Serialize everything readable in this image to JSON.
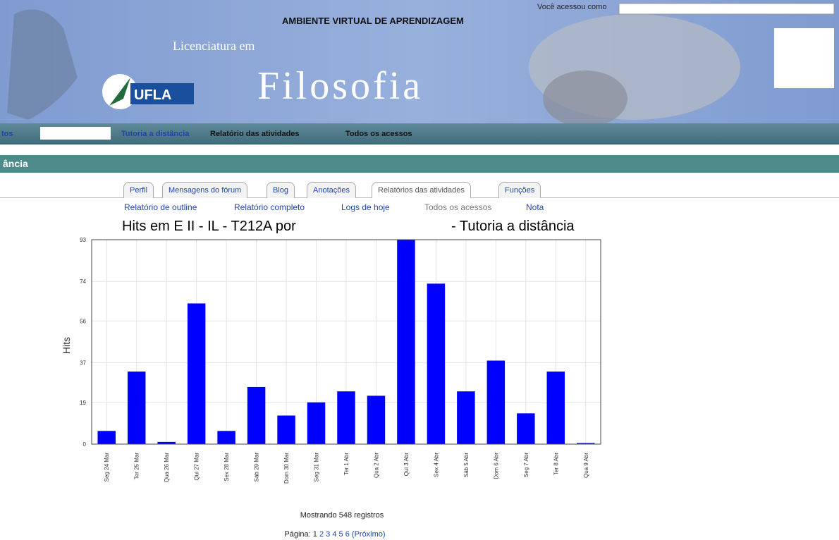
{
  "header": {
    "platform": "AMBIENTE VIRTUAL DE APRENDIZAGEM",
    "subtitle": "Licenciatura em",
    "title": "Filosofia",
    "logo": "UFLA",
    "login": "Você acessou como"
  },
  "breadcrumb": {
    "first": "tos",
    "items": [
      "Tutoria a distância",
      "Relatório das atividades",
      "Todos os acessos"
    ]
  },
  "course_bar": "ância",
  "tabs": [
    "Perfil",
    "Mensagens do fórum",
    "Blog",
    "Anotações",
    "Relatórios das atividades",
    "Funções"
  ],
  "subtabs": [
    "Relatório de outline",
    "Relatório completo",
    "Logs de hoje",
    "Todos os acessos",
    "Nota"
  ],
  "chart_data": {
    "type": "bar",
    "title_parts": [
      "Hits em E II - IL - T212A por",
      "- Tutoria a distância"
    ],
    "y_label": "Hits",
    "categories": [
      "Seg 24 Mar",
      "Ter 25 Mar",
      "Qua 26 Mar",
      "Qui 27 Mar",
      "Sex 28 Mar",
      "Sáb 29 Mar",
      "Dom 30 Mar",
      "Seg 31 Mar",
      "Ter 1 Abr",
      "Qua 2 Abr",
      "Qui 3 Abr",
      "Sex 4 Abr",
      "Sáb 5 Abr",
      "Dom 6 Abr",
      "Seg 7 Abr",
      "Ter 8 Abr",
      "Qua 9 Abr"
    ],
    "values": [
      6,
      33,
      1,
      64,
      6,
      26,
      13,
      19,
      24,
      22,
      93,
      73,
      24,
      38,
      14,
      33,
      0.5
    ],
    "color": "#0000ff",
    "ylim": [
      0,
      93
    ],
    "yticks": [
      0,
      19,
      37,
      56,
      74,
      93
    ],
    "grid": true
  },
  "footer": {
    "records": "Mostrando 548 registros",
    "page_label": "Página:",
    "pages": [
      "1",
      "2",
      "3",
      "4",
      "5",
      "6"
    ],
    "next": "(Próximo)"
  }
}
